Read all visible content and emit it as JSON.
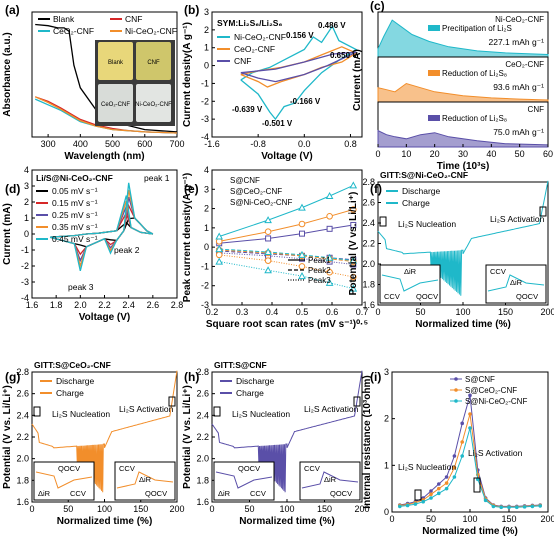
{
  "chart_data": [
    {
      "panel": "a",
      "type": "line",
      "xlabel": "Wavelength (nm)",
      "ylabel": "Absorbance (a.u.)",
      "xlim": [
        250,
        700
      ],
      "xticks": [
        300,
        400,
        500,
        600,
        700
      ],
      "legend": "top",
      "series": [
        {
          "name": "Blank",
          "color": "#000000",
          "x": [
            260,
            300,
            330,
            350,
            365,
            380,
            400,
            450,
            500,
            600,
            700
          ],
          "y": [
            0.96,
            0.95,
            0.93,
            0.93,
            0.9,
            0.6,
            0.4,
            0.2,
            0.1,
            0.03,
            0.01
          ]
        },
        {
          "name": "CNF",
          "color": "#d62728",
          "x": [
            260,
            300,
            340,
            370,
            400,
            450,
            500,
            550,
            600,
            700
          ],
          "y": [
            0.32,
            0.28,
            0.22,
            0.17,
            0.12,
            0.07,
            0.04,
            0.02,
            0.01,
            0.0
          ]
        },
        {
          "name": "CeO₂-CNF",
          "color": "#1fb8c9",
          "x": [
            260,
            300,
            340,
            370,
            400,
            450,
            500,
            600,
            700
          ],
          "y": [
            0.3,
            0.25,
            0.2,
            0.15,
            0.1,
            0.06,
            0.03,
            0.01,
            0.0
          ]
        },
        {
          "name": "Ni-CeO₂-CNF",
          "color": "#f28e2b",
          "x": [
            260,
            300,
            340,
            370,
            400,
            450,
            500,
            600,
            700
          ],
          "y": [
            0.32,
            0.27,
            0.21,
            0.16,
            0.11,
            0.06,
            0.03,
            0.01,
            0.0
          ]
        }
      ],
      "inset_labels": [
        "Blank",
        "CNF",
        "CeO₂-CNF",
        "Ni-CeO₂-CNF"
      ]
    },
    {
      "panel": "b",
      "type": "line",
      "title": "SYM:Li₂S₆/Li₂S₆",
      "xlabel": "Voltage (V)",
      "ylabel": "Current density(A g⁻¹)",
      "xlim": [
        -1.6,
        1.0
      ],
      "ylim": [
        -4,
        3
      ],
      "xticks": [
        -1.6,
        -0.8,
        0.0,
        0.8
      ],
      "yticks": [
        -4,
        -3,
        -2,
        -1,
        0,
        1,
        2,
        3
      ],
      "series": [
        {
          "name": "Ni-CeO₂-CNF",
          "color": "#1fb8c9",
          "x": [
            -1.1,
            -0.8,
            -0.6,
            -0.501,
            -0.35,
            -0.166,
            0.0,
            0.3,
            0.6,
            0.9,
            0.6,
            0.486,
            0.3,
            0.156,
            0.0,
            -0.3,
            -0.6,
            -0.9,
            -1.1
          ],
          "y": [
            -0.8,
            -1.6,
            -2.6,
            -3.0,
            -2.3,
            -2.1,
            -1.4,
            -0.4,
            0.3,
            0.9,
            1.4,
            2.2,
            1.3,
            1.6,
            0.9,
            0.4,
            -0.1,
            -0.4,
            -0.8
          ]
        },
        {
          "name": "CeO₂-CNF",
          "color": "#f28e2b",
          "x": [
            -1.1,
            -0.8,
            -0.639,
            -0.4,
            0.0,
            0.3,
            0.65,
            0.9,
            0.65,
            0.3,
            0.0,
            -0.4,
            -0.8,
            -1.1
          ],
          "y": [
            -0.5,
            -0.9,
            -1.2,
            -0.9,
            -0.5,
            -0.1,
            0.2,
            0.7,
            1.05,
            0.6,
            0.2,
            -0.1,
            -0.3,
            -0.5
          ]
        },
        {
          "name": "CNF",
          "color": "#5a4fa8",
          "x": [
            -1.1,
            -0.8,
            -0.5,
            0.0,
            0.4,
            0.9,
            0.5,
            0.0,
            -0.5,
            -1.1
          ],
          "y": [
            -0.4,
            -0.7,
            -0.9,
            -0.5,
            0.0,
            0.75,
            0.65,
            0.2,
            -0.2,
            -0.4
          ]
        }
      ],
      "annotations": [
        "0.156 V",
        "0.486 V",
        "0.650 V",
        "-0.639 V",
        "-0.166 V",
        "-0.501 V"
      ]
    },
    {
      "panel": "c",
      "type": "area",
      "xlabel": "Time (10³s)",
      "ylabel": "Current (mA)",
      "xlim": [
        0,
        60
      ],
      "xticks": [
        0,
        10,
        20,
        30,
        40,
        50,
        60
      ],
      "subpanels": [
        {
          "name": "Ni-CeO₂-CNF",
          "legend": "Precitipation of Li₂S",
          "capacity": "227.1 mAh g⁻¹",
          "legend_color": "#1fb8c9",
          "x": [
            0,
            2,
            5,
            8,
            12,
            18,
            25,
            35,
            45,
            60
          ],
          "y": [
            0.2,
            0.5,
            0.9,
            0.75,
            0.55,
            0.38,
            0.25,
            0.15,
            0.1,
            0.06
          ]
        },
        {
          "name": "CeO₂-CNF",
          "legend": "Reduction of Li₂S₈",
          "capacity": "93.6 mAh g⁻¹",
          "legend_color": "#f28e2b",
          "x": [
            0,
            3,
            6,
            10,
            15,
            20,
            30,
            40,
            50,
            60
          ],
          "y": [
            0.35,
            0.3,
            0.25,
            0.45,
            0.35,
            0.25,
            0.15,
            0.1,
            0.07,
            0.05
          ]
        },
        {
          "name": "CNF",
          "legend": "Reduction of Li₂S₈",
          "capacity": "75.0 mAh g⁻¹",
          "legend_color": "#5a4fa8",
          "x": [
            0,
            3,
            6,
            10,
            15,
            20,
            25,
            35,
            45,
            60
          ],
          "y": [
            0.4,
            0.3,
            0.25,
            0.2,
            0.3,
            0.35,
            0.25,
            0.15,
            0.08,
            0.05
          ]
        }
      ]
    },
    {
      "panel": "d",
      "type": "line",
      "title": "Li/S@Ni-CeO₂-CNF",
      "xlabel": "Voltage (V)",
      "ylabel": "Current (mA)",
      "xlim": [
        1.6,
        2.8
      ],
      "ylim": [
        -4,
        4
      ],
      "xticks": [
        1.6,
        1.8,
        2.0,
        2.2,
        2.4,
        2.6,
        2.8
      ],
      "yticks": [
        -4,
        -3,
        -2,
        -1,
        0,
        1,
        2,
        3,
        4
      ],
      "series": [
        {
          "name": "0.05 mV s⁻¹",
          "color": "#000000",
          "scale": 0.3
        },
        {
          "name": "0.15 mV s⁻¹",
          "color": "#d62728",
          "scale": 0.55
        },
        {
          "name": "0.25 mV s⁻¹",
          "color": "#5a4fa8",
          "scale": 0.72
        },
        {
          "name": "0.35 mV s⁻¹",
          "color": "#f28e2b",
          "scale": 0.86
        },
        {
          "name": "0.45 mV s⁻¹",
          "color": "#1fb8c9",
          "scale": 1.0
        }
      ],
      "annotations": [
        "peak 1",
        "peak 2",
        "peak 3"
      ]
    },
    {
      "panel": "e",
      "type": "scatter",
      "xlabel": "Square root scan rates (mV s⁻¹)⁰·⁵",
      "ylabel": "Peak current density(A g⁻¹)",
      "xlim": [
        0.2,
        0.7
      ],
      "ylim": [
        -3,
        4
      ],
      "xticks": [
        0.2,
        0.3,
        0.4,
        0.5,
        0.6,
        0.7
      ],
      "yticks": [
        -3,
        -2,
        -1,
        0,
        1,
        2,
        3,
        4
      ],
      "x": [
        0.224,
        0.387,
        0.5,
        0.592,
        0.671
      ],
      "series": [
        {
          "name": "S@CNF",
          "color": "#5a4fa8",
          "marker": "square",
          "peak1": [
            0.2,
            0.45,
            0.7,
            0.95,
            1.15
          ],
          "peak2": [
            -0.2,
            -0.35,
            -0.45,
            -0.55,
            -0.65
          ],
          "peak3": [
            -0.3,
            -0.45,
            -0.6,
            -0.75,
            -0.9
          ]
        },
        {
          "name": "S@CeO₂-CNF",
          "color": "#f28e2b",
          "marker": "circle",
          "peak1": [
            0.3,
            0.8,
            1.2,
            1.6,
            1.95
          ],
          "peak2": [
            -0.15,
            -0.3,
            -0.45,
            -0.6,
            -0.75
          ],
          "peak3": [
            -0.4,
            -0.7,
            -1.0,
            -1.3,
            -1.55
          ]
        },
        {
          "name": "S@Ni-CeO₂-CNF",
          "color": "#1fb8c9",
          "marker": "triangle",
          "peak1": [
            0.55,
            1.4,
            2.05,
            2.65,
            3.2
          ],
          "peak2": [
            -0.1,
            -0.25,
            -0.4,
            -0.55,
            -0.7
          ],
          "peak3": [
            -0.75,
            -1.2,
            -1.5,
            -1.85,
            -2.15
          ]
        }
      ],
      "legend2": [
        "Peak1",
        "Peak2",
        "Peak3"
      ]
    },
    {
      "panel": "f",
      "type": "line",
      "title": "GITT:S@Ni-CeO₂-CNF",
      "xlabel": "Normalized time (%)",
      "ylabel": "Potential (V vs. Li/Li⁺)",
      "xlim": [
        0,
        200
      ],
      "ylim": [
        1.6,
        2.8
      ],
      "color": "#1fb8c9",
      "legend": [
        "Discharge",
        "Charge"
      ],
      "annotations": [
        "Li₂S Nucleation",
        "Li₂S Activation",
        "CCV",
        "ΔiR",
        "QOCV",
        "CCV",
        "ΔiR",
        "QOCV"
      ]
    },
    {
      "panel": "g",
      "type": "line",
      "title": "GITT:S@CeO₂-CNF",
      "xlabel": "Normalized time (%)",
      "ylabel": "Potential (V vs. Li/Li⁺)",
      "xlim": [
        0,
        200
      ],
      "ylim": [
        1.6,
        2.8
      ],
      "color": "#f28e2b",
      "legend": [
        "Discharge",
        "Charge"
      ],
      "annotations": [
        "Li₂S Nucleation",
        "Li₂S Activation",
        "ΔiR",
        "QOCV",
        "CCV",
        "CCV",
        "ΔiR",
        "QOCV"
      ]
    },
    {
      "panel": "h",
      "type": "line",
      "title": "GITT:S@CNF",
      "xlabel": "Normalized time (%)",
      "ylabel": "Potential (V vs. Li/Li⁺)",
      "xlim": [
        0,
        200
      ],
      "ylim": [
        1.6,
        2.8
      ],
      "color": "#5a4fa8",
      "legend": [
        "Discharge",
        "Charge"
      ],
      "annotations": [
        "Li₂S Nucleation",
        "Li₂S Activation",
        "ΔiR",
        "QOCV",
        "CCV",
        "CCV",
        "ΔiR",
        "QOCV"
      ]
    },
    {
      "panel": "i",
      "type": "line",
      "xlabel": "Normalized time (%)",
      "ylabel": "Internal resistance (10³ohm)",
      "xlim": [
        0,
        200
      ],
      "ylim": [
        0,
        3
      ],
      "xticks": [
        0,
        50,
        100,
        150,
        200
      ],
      "yticks": [
        0,
        1,
        2,
        3
      ],
      "x": [
        10,
        20,
        30,
        40,
        50,
        60,
        70,
        80,
        90,
        100,
        110,
        120,
        130,
        140,
        150,
        160,
        170,
        180,
        190
      ],
      "series": [
        {
          "name": "S@CNF",
          "color": "#5a4fa8",
          "y": [
            0.15,
            0.18,
            0.22,
            0.3,
            0.45,
            0.6,
            0.75,
            1.2,
            1.9,
            2.5,
            0.9,
            0.3,
            0.15,
            0.12,
            0.12,
            0.12,
            0.13,
            0.14,
            0.15
          ]
        },
        {
          "name": "S@CeO₂-CNF",
          "color": "#f28e2b",
          "y": [
            0.14,
            0.16,
            0.2,
            0.26,
            0.38,
            0.5,
            0.62,
            0.95,
            1.5,
            2.1,
            0.8,
            0.28,
            0.14,
            0.11,
            0.11,
            0.11,
            0.12,
            0.13,
            0.14
          ]
        },
        {
          "name": "S@Ni-CeO₂-CNF",
          "color": "#1fb8c9",
          "y": [
            0.12,
            0.14,
            0.17,
            0.22,
            0.3,
            0.4,
            0.5,
            0.75,
            1.2,
            1.8,
            0.7,
            0.25,
            0.12,
            0.1,
            0.1,
            0.1,
            0.11,
            0.12,
            0.13
          ]
        }
      ],
      "annotations": [
        "Li₂S Nucleation",
        "Li₂S Activation"
      ]
    }
  ]
}
